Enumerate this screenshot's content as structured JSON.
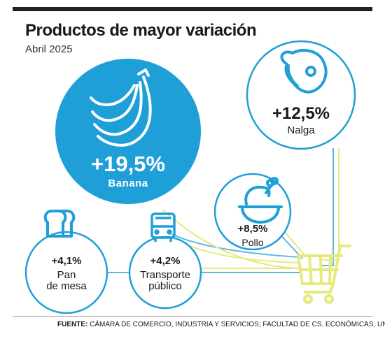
{
  "header": {
    "title": "Productos de mayor variación",
    "subtitle": "Abril 2025"
  },
  "chart_data": {
    "type": "bubble",
    "unit": "%",
    "items": [
      {
        "name": "Banana",
        "value": 19.5,
        "label": "+19,5%"
      },
      {
        "name": "Nalga",
        "value": 12.5,
        "label": "+12,5%"
      },
      {
        "name": "Pollo",
        "value": 8.5,
        "label": "+8,5%"
      },
      {
        "name": "Transporte público",
        "value": 4.2,
        "label": "+4,2%"
      },
      {
        "name": "Pan de mesa",
        "value": 4.1,
        "label": "+4,1%"
      }
    ]
  },
  "bubbles": {
    "banana": {
      "pct": "+19,5%",
      "name": "Banana"
    },
    "nalga": {
      "pct": "+12,5%",
      "name": "Nalga"
    },
    "pollo": {
      "pct": "+8,5%",
      "name": "Pollo"
    },
    "transporte": {
      "pct": "+4,2%",
      "name_line1": "Transporte",
      "name_line2": "público"
    },
    "pan": {
      "pct": "+4,1%",
      "name_line1": "Pan",
      "name_line2": "de mesa"
    }
  },
  "icons": [
    "banana-icon",
    "meat-icon",
    "chicken-icon",
    "bus-icon",
    "bread-icon",
    "shopping-cart-icon"
  ],
  "colors": {
    "accent": "#1f9fd8",
    "line_blue": "#5bb8e0",
    "line_yellow": "#e6ea7a"
  },
  "footer": {
    "source_label": "FUENTE:",
    "source_text": " CÁMARA DE COMERCIO, INDUSTRIA Y SERVICIOS; FACULTAD DE CS. ECONÓMICAS, UNLP"
  }
}
